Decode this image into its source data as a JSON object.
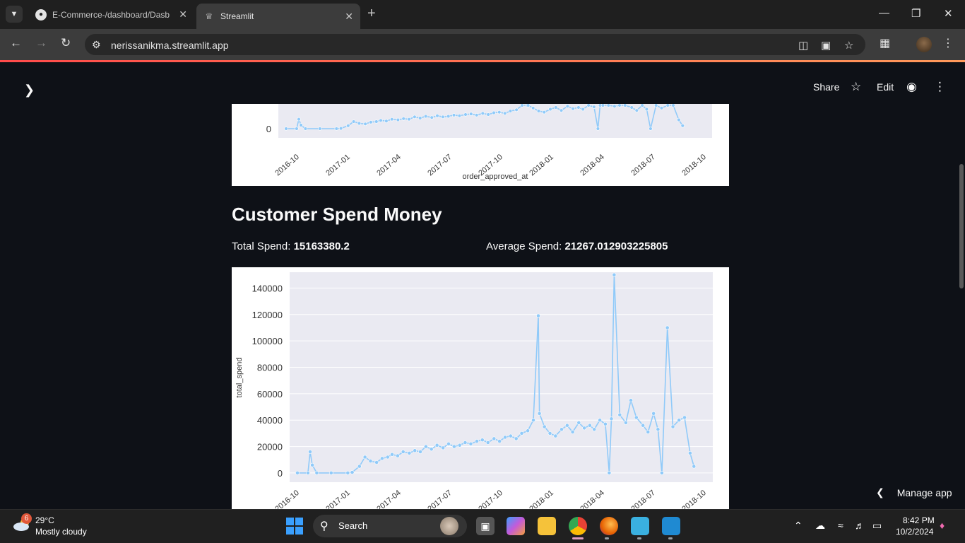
{
  "browser": {
    "tabs": [
      {
        "title": "E-Commerce-/dashboard/Dasb",
        "active": false,
        "favicon": "github-icon"
      },
      {
        "title": "Streamlit",
        "active": true,
        "favicon": "streamlit-icon"
      }
    ],
    "url": "nerissanikma.streamlit.app"
  },
  "header": {
    "share": "Share",
    "edit": "Edit"
  },
  "top_chart": {
    "y_tick_zero": "0",
    "x_ticks": [
      "2016-10",
      "2017-01",
      "2017-04",
      "2017-07",
      "2017-10",
      "2018-01",
      "2018-04",
      "2018-07",
      "2018-10"
    ],
    "xlabel": "order_approved_at"
  },
  "section": {
    "title": "Customer Spend Money",
    "total_label": "Total Spend: ",
    "total_value": "15163380.2",
    "avg_label": "Average Spend: ",
    "avg_value": "21267.012903225805"
  },
  "chart_data": {
    "type": "line",
    "ylabel": "total_spend",
    "xlabel": "",
    "x_ticks": [
      "2016-10",
      "2017-01",
      "2017-04",
      "2017-07",
      "2017-10",
      "2018-01",
      "2018-04",
      "2018-07",
      "2018-10"
    ],
    "y_ticks": [
      0,
      20000,
      40000,
      60000,
      80000,
      100000,
      120000,
      140000
    ],
    "ylim": [
      -7000,
      152000
    ],
    "grid": true,
    "color": "#90CAF9",
    "background": "#EAEAF2",
    "series": [
      {
        "x": [
          "2016-09-15",
          "2016-10-04",
          "2016-10-08",
          "2016-10-12",
          "2016-10-20",
          "2016-11-15",
          "2016-12-15",
          "2016-12-23",
          "2017-01-05",
          "2017-01-15",
          "2017-01-25",
          "2017-02-05",
          "2017-02-15",
          "2017-02-25",
          "2017-03-05",
          "2017-03-15",
          "2017-03-25",
          "2017-04-05",
          "2017-04-15",
          "2017-04-25",
          "2017-05-05",
          "2017-05-15",
          "2017-05-25",
          "2017-06-05",
          "2017-06-15",
          "2017-06-25",
          "2017-07-05",
          "2017-07-15",
          "2017-07-25",
          "2017-08-05",
          "2017-08-15",
          "2017-08-25",
          "2017-09-05",
          "2017-09-15",
          "2017-09-25",
          "2017-10-05",
          "2017-10-15",
          "2017-10-25",
          "2017-11-05",
          "2017-11-15",
          "2017-11-24",
          "2017-11-26",
          "2017-12-05",
          "2017-12-15",
          "2017-12-25",
          "2018-01-05",
          "2018-01-15",
          "2018-01-25",
          "2018-02-05",
          "2018-02-15",
          "2018-02-25",
          "2018-03-05",
          "2018-03-15",
          "2018-03-25",
          "2018-04-01",
          "2018-04-05",
          "2018-04-10",
          "2018-04-20",
          "2018-05-01",
          "2018-05-10",
          "2018-05-20",
          "2018-06-01",
          "2018-06-10",
          "2018-06-20",
          "2018-06-28",
          "2018-07-05",
          "2018-07-15",
          "2018-07-25",
          "2018-08-05",
          "2018-08-15",
          "2018-08-25",
          "2018-09-01"
        ],
        "y": [
          0,
          0,
          16000,
          6000,
          0,
          0,
          0,
          500,
          5000,
          12000,
          9000,
          8000,
          11000,
          12000,
          14000,
          13000,
          16000,
          15000,
          17000,
          16000,
          20000,
          18000,
          21000,
          19000,
          22000,
          20000,
          21000,
          23000,
          22000,
          24000,
          25000,
          23000,
          26000,
          24000,
          27000,
          28000,
          26000,
          30000,
          32000,
          40000,
          119000,
          45000,
          35000,
          30000,
          28000,
          33000,
          36000,
          31000,
          38000,
          34000,
          36000,
          33000,
          40000,
          37000,
          0,
          41000,
          150000,
          44000,
          38000,
          55000,
          42000,
          36000,
          31000,
          45000,
          33000,
          0,
          110000,
          35000,
          40000,
          42000,
          15000,
          5000
        ]
      }
    ]
  }
}
